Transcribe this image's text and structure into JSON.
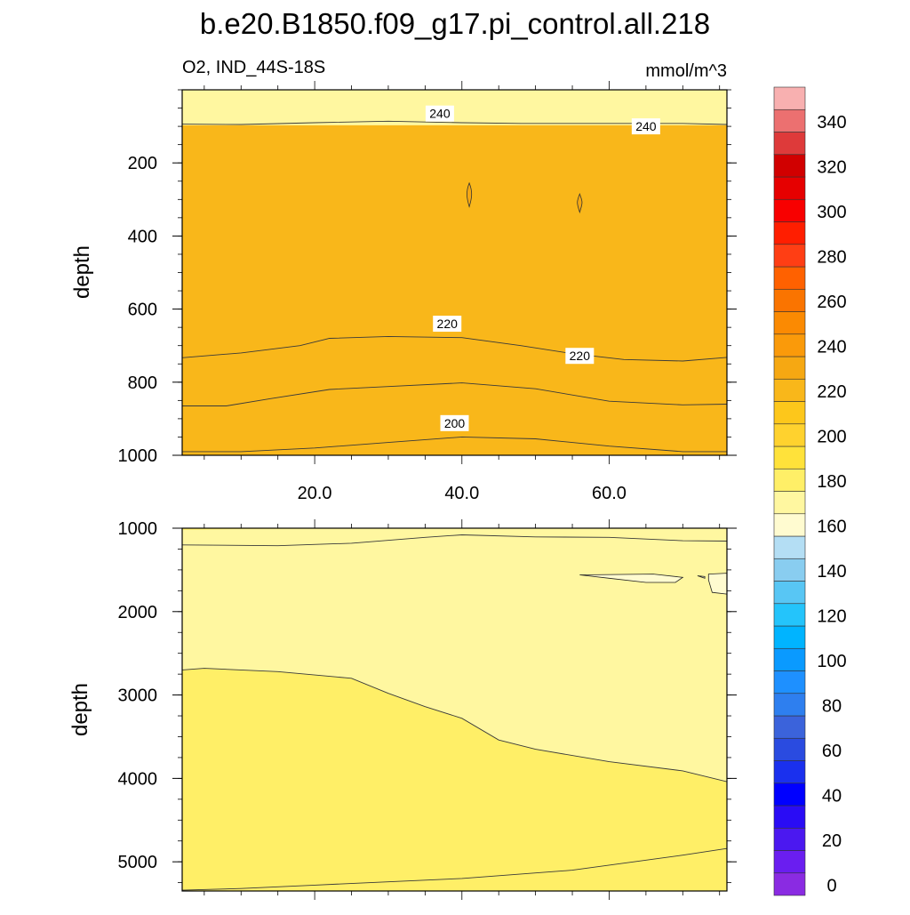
{
  "chart_data": {
    "type": "contour",
    "title": "b.e20.B1850.f09_g17.pi_control.all.218",
    "variable_label": "O2, IND_44S-18S",
    "units_label": "mmol/m^3",
    "ylabel": "depth",
    "x_range": [
      2,
      76
    ],
    "x_ticks": [
      {
        "value": 20,
        "label": "20.0"
      },
      {
        "value": 40,
        "label": "40.0"
      },
      {
        "value": 60,
        "label": "60.0"
      }
    ],
    "panels": [
      {
        "name": "upper",
        "y_range": [
          0,
          1000
        ],
        "y_ticks": [
          {
            "value": 200,
            "label": "200"
          },
          {
            "value": 400,
            "label": "400"
          },
          {
            "value": 600,
            "label": "600"
          },
          {
            "value": 800,
            "label": "800"
          },
          {
            "value": 1000,
            "label": "1000"
          }
        ],
        "background_level": 180,
        "bands": [
          {
            "level": 190,
            "upper": [
              [
                2,
                990
              ],
              [
                10,
                990
              ],
              [
                20,
                980
              ],
              [
                30,
                965
              ],
              [
                40,
                950
              ],
              [
                50,
                955
              ],
              [
                60,
                975
              ],
              [
                70,
                990
              ],
              [
                76,
                990
              ]
            ]
          },
          {
            "level": 200,
            "upper": [
              [
                2,
                865
              ],
              [
                8,
                865
              ],
              [
                14,
                845
              ],
              [
                22,
                820
              ],
              [
                30,
                812
              ],
              [
                40,
                802
              ],
              [
                50,
                818
              ],
              [
                60,
                852
              ],
              [
                70,
                862
              ],
              [
                76,
                860
              ]
            ]
          },
          {
            "level": 210,
            "upper": [
              [
                2,
                733
              ],
              [
                10,
                720
              ],
              [
                18,
                700
              ],
              [
                22,
                680
              ],
              [
                30,
                675
              ],
              [
                40,
                678
              ],
              [
                48,
                700
              ],
              [
                55,
                722
              ],
              [
                62,
                738
              ],
              [
                70,
                742
              ],
              [
                76,
                732
              ]
            ]
          },
          {
            "level": 220,
            "upper": [
              [
                2,
                190
              ],
              [
                5,
                185
              ],
              [
                10,
                210
              ],
              [
                15,
                232
              ],
              [
                20,
                215
              ],
              [
                25,
                230
              ],
              [
                30,
                200
              ],
              [
                34,
                188
              ],
              [
                37,
                178
              ],
              [
                38,
                185
              ],
              [
                39,
                210
              ],
              [
                39.5,
                285
              ],
              [
                39.5,
                360
              ],
              [
                40,
                420
              ],
              [
                42,
                475
              ],
              [
                45,
                490
              ],
              [
                50,
                522
              ],
              [
                56,
                565
              ],
              [
                64,
                570
              ],
              [
                70,
                543
              ],
              [
                76,
                562
              ]
            ]
          },
          {
            "level": 230,
            "upper": [
              [
                2,
                97
              ],
              [
                76,
                97
              ]
            ]
          }
        ],
        "contour_lines": [
          {
            "level": 240,
            "points": [
              [
                2,
                94
              ],
              [
                10,
                95
              ],
              [
                20,
                90
              ],
              [
                30,
                86
              ],
              [
                40,
                90
              ],
              [
                48,
                92
              ],
              [
                60,
                92
              ],
              [
                70,
                92
              ],
              [
                76,
                95
              ]
            ]
          },
          {
            "level": 220,
            "points": [
              [
                2,
                733
              ],
              [
                10,
                720
              ],
              [
                18,
                700
              ],
              [
                22,
                680
              ],
              [
                30,
                675
              ],
              [
                40,
                678
              ],
              [
                48,
                700
              ],
              [
                55,
                722
              ],
              [
                62,
                738
              ],
              [
                70,
                742
              ],
              [
                76,
                732
              ]
            ]
          },
          {
            "level": 210,
            "points": [
              [
                2,
                865
              ],
              [
                8,
                865
              ],
              [
                14,
                845
              ],
              [
                22,
                820
              ],
              [
                30,
                812
              ],
              [
                40,
                802
              ],
              [
                50,
                818
              ],
              [
                60,
                852
              ],
              [
                70,
                862
              ],
              [
                76,
                860
              ]
            ]
          },
          {
            "level": 200,
            "points": [
              [
                2,
                990
              ],
              [
                10,
                990
              ],
              [
                20,
                980
              ],
              [
                30,
                965
              ],
              [
                40,
                950
              ],
              [
                50,
                955
              ],
              [
                60,
                975
              ],
              [
                70,
                990
              ],
              [
                76,
                990
              ]
            ]
          }
        ],
        "contour_labels": [
          {
            "text": "240",
            "x": 37,
            "y": 65
          },
          {
            "text": "240",
            "x": 65,
            "y": 100
          },
          {
            "text": "220",
            "x": 38,
            "y": 640
          },
          {
            "text": "220",
            "x": 56,
            "y": 728
          },
          {
            "text": "200",
            "x": 39,
            "y": 912
          }
        ],
        "closed_contours": [
          {
            "level": 230,
            "x": 41,
            "y_from": 255,
            "y_to": 320
          },
          {
            "level": 230,
            "x": 56,
            "y_from": 285,
            "y_to": 335
          }
        ]
      },
      {
        "name": "lower",
        "y_range": [
          1000,
          5350
        ],
        "y_ticks": [
          {
            "value": 1000,
            "label": "1000"
          },
          {
            "value": 2000,
            "label": "2000"
          },
          {
            "value": 3000,
            "label": "3000"
          },
          {
            "value": 4000,
            "label": "4000"
          },
          {
            "value": 5000,
            "label": "5000"
          }
        ],
        "background_level": 180,
        "bands": [
          {
            "level": 190,
            "upper": [
              [
                2,
                1020
              ],
              [
                10,
                1010
              ],
              [
                20,
                1005
              ],
              [
                30,
                1000
              ],
              [
                76,
                1000
              ]
            ],
            "lower": [
              [
                76,
                1000
              ],
              [
                40,
                1000
              ],
              [
                2,
                1000
              ]
            ]
          },
          {
            "level": 180,
            "upper": [
              [
                2,
                1200
              ],
              [
                15,
                1210
              ],
              [
                25,
                1180
              ],
              [
                35,
                1110
              ],
              [
                40,
                1080
              ],
              [
                50,
                1105
              ],
              [
                60,
                1110
              ],
              [
                70,
                1150
              ],
              [
                76,
                1155
              ]
            ]
          },
          {
            "level": 190,
            "upper": [
              [
                2,
                2700
              ],
              [
                5,
                2680
              ],
              [
                15,
                2720
              ],
              [
                25,
                2800
              ],
              [
                30,
                2980
              ],
              [
                35,
                3140
              ],
              [
                40,
                3280
              ],
              [
                45,
                3540
              ],
              [
                50,
                3650
              ],
              [
                60,
                3800
              ],
              [
                70,
                3910
              ],
              [
                76,
                4040
              ]
            ]
          }
        ],
        "contour_lines": [
          {
            "level": 190,
            "points": [
              [
                2,
                1200
              ],
              [
                15,
                1210
              ],
              [
                25,
                1180
              ],
              [
                35,
                1110
              ],
              [
                40,
                1080
              ],
              [
                50,
                1105
              ],
              [
                60,
                1110
              ],
              [
                70,
                1150
              ],
              [
                76,
                1155
              ]
            ]
          },
          {
            "level": 190,
            "points": [
              [
                2,
                2700
              ],
              [
                5,
                2680
              ],
              [
                15,
                2720
              ],
              [
                25,
                2800
              ],
              [
                30,
                2980
              ],
              [
                35,
                3140
              ],
              [
                40,
                3280
              ],
              [
                45,
                3540
              ],
              [
                50,
                3650
              ],
              [
                60,
                3800
              ],
              [
                70,
                3910
              ],
              [
                76,
                4040
              ]
            ]
          },
          {
            "level": 190,
            "points": [
              [
                2,
                5340
              ],
              [
                10,
                5320
              ],
              [
                20,
                5280
              ],
              [
                40,
                5200
              ],
              [
                55,
                5100
              ],
              [
                70,
                4920
              ],
              [
                76,
                4840
              ]
            ]
          }
        ],
        "pockets": [
          {
            "level": 170,
            "outline": [
              [
                56,
                1560
              ],
              [
                60,
                1600
              ],
              [
                65,
                1650
              ],
              [
                69,
                1650
              ],
              [
                70,
                1590
              ],
              [
                66,
                1550
              ]
            ]
          },
          {
            "level": 170,
            "outline": [
              [
                72,
                1570
              ],
              [
                73,
                1580
              ],
              [
                73,
                1600
              ],
              [
                72,
                1570
              ]
            ]
          },
          {
            "level": 170,
            "outline": [
              [
                73.5,
                1550
              ],
              [
                76,
                1540
              ],
              [
                76,
                1790
              ],
              [
                74,
                1770
              ],
              [
                73.5,
                1620
              ]
            ]
          }
        ]
      }
    ],
    "colorbar": {
      "levels": [
        0,
        10,
        20,
        30,
        40,
        50,
        60,
        70,
        80,
        90,
        100,
        110,
        120,
        130,
        140,
        150,
        160,
        170,
        180,
        190,
        200,
        210,
        220,
        230,
        240,
        250,
        260,
        270,
        280,
        290,
        300,
        310,
        320,
        330,
        340,
        350,
        360
      ],
      "tick_labels": [
        "0",
        "20",
        "40",
        "60",
        "80",
        "100",
        "120",
        "140",
        "160",
        "180",
        "200",
        "220",
        "240",
        "260",
        "280",
        "300",
        "320",
        "340"
      ],
      "tick_values": [
        0,
        20,
        40,
        60,
        80,
        100,
        120,
        140,
        160,
        180,
        200,
        220,
        240,
        260,
        280,
        300,
        320,
        340
      ],
      "colors": [
        "#8a2be2",
        "#6a1ef0",
        "#4b18f0",
        "#2a0cf5",
        "#0000ff",
        "#1a30ee",
        "#2a4be0",
        "#3b63db",
        "#2e7fef",
        "#1e90ff",
        "#0a9aff",
        "#00b4ff",
        "#24c4fb",
        "#58c6f4",
        "#89cdf0",
        "#b4def4",
        "#fffbd0",
        "#fff7a0",
        "#ffef67",
        "#ffe23a",
        "#ffd22e",
        "#fdc71b",
        "#f9b71a",
        "#f6a812",
        "#fa9a0a",
        "#fb8a02",
        "#fa7400",
        "#ff6100",
        "#ff3e14",
        "#ff1e00",
        "#f80000",
        "#e60000",
        "#d10000",
        "#de3a3a",
        "#ec7070",
        "#f8b0b0"
      ]
    },
    "contour_levels_color_map": {
      "170": "#fffbd0",
      "180": "#fff7a0",
      "190": "#ffef67",
      "200": "#ffe23a",
      "210": "#ffd22e",
      "220": "#fdc71b",
      "230": "#f9b71a",
      "240": "#fa9a0a"
    }
  }
}
